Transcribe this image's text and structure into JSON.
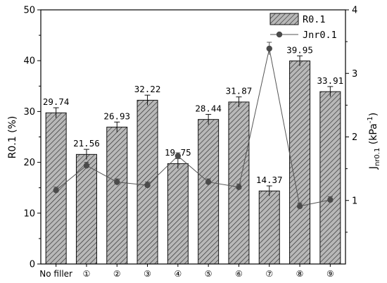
{
  "chart_data": {
    "type": "bar",
    "categories": [
      "No filler",
      "①",
      "②",
      "③",
      "④",
      "⑤",
      "⑥",
      "⑦",
      "⑧",
      "⑨"
    ],
    "series": [
      {
        "name": "R0.1",
        "type": "bar",
        "axis": "left",
        "values": [
          29.74,
          21.56,
          26.93,
          32.22,
          19.75,
          28.44,
          31.87,
          14.37,
          39.95,
          33.91
        ],
        "labels": [
          "29.74",
          "21.56",
          "26.93",
          "32.22",
          "19.75",
          "28.44",
          "31.87",
          "14.37",
          "39.95",
          "33.91"
        ],
        "errors": [
          1.0,
          1.0,
          1.0,
          1.0,
          1.0,
          1.0,
          1.0,
          1.0,
          1.0,
          1.0
        ]
      },
      {
        "name": "Jnr0.1",
        "type": "line",
        "axis": "right",
        "values": [
          1.16,
          1.55,
          1.29,
          1.24,
          1.7,
          1.29,
          1.21,
          3.39,
          0.91,
          1.01
        ],
        "errors": [
          0.05,
          0.05,
          0.05,
          0.05,
          0.05,
          0.05,
          0.05,
          0.1,
          0.05,
          0.05
        ]
      }
    ],
    "ylabel": "R0.1 (%)",
    "ylabel_right_main": "J",
    "ylabel_right_sub": "nr0.1",
    "ylabel_right_unit": " (kPa",
    "ylabel_right_exp": "-1",
    "ylabel_right_close": ")",
    "ylim": [
      0,
      50
    ],
    "yticks": [
      "0",
      "10",
      "20",
      "30",
      "40",
      "50"
    ],
    "ylim_right": [
      0,
      4
    ],
    "yticks_right": [
      "1",
      "2",
      "3",
      "4"
    ],
    "legend_position": "top-right",
    "grid": false,
    "colors": {
      "bar_fill": "#b5b5b5",
      "bar_hatch": "#333333",
      "line": "#555555",
      "marker": "#4a4a4a",
      "axis": "#000000"
    }
  }
}
